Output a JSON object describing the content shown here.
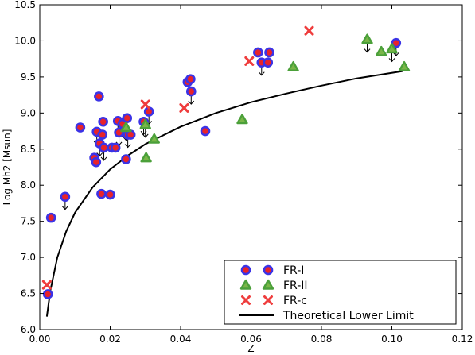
{
  "chart_data": {
    "type": "scatter",
    "xlabel": "Z",
    "ylabel": "Log Mh2 [Msun]",
    "xlim": [
      0.0,
      0.12
    ],
    "ylim": [
      6.0,
      10.5
    ],
    "xticks": [
      "0.00",
      "0.02",
      "0.04",
      "0.06",
      "0.08",
      "0.10",
      "0.12"
    ],
    "yticks": [
      "6.0",
      "6.5",
      "7.0",
      "7.5",
      "8.0",
      "8.5",
      "9.0",
      "9.5",
      "10.0",
      "10.5"
    ],
    "legend_position": "bottom-right",
    "colors": {
      "fr1_fill": "#e8232a",
      "fr1_edge": "#3b33e6",
      "fr2_fill": "#7ab648",
      "fr2_edge": "#4ba03a",
      "frc": "#ef3d3d",
      "curve": "#000000"
    },
    "series": [
      {
        "name": "FR-I",
        "marker": "circle",
        "points": [
          {
            "x": 0.0023,
            "y": 6.49,
            "upper_limit": false
          },
          {
            "x": 0.0032,
            "y": 7.55,
            "upper_limit": false
          },
          {
            "x": 0.0072,
            "y": 7.84,
            "upper_limit": true
          },
          {
            "x": 0.0115,
            "y": 8.8,
            "upper_limit": false
          },
          {
            "x": 0.0155,
            "y": 8.38,
            "upper_limit": false
          },
          {
            "x": 0.016,
            "y": 8.32,
            "upper_limit": false
          },
          {
            "x": 0.0162,
            "y": 8.74,
            "upper_limit": true
          },
          {
            "x": 0.0168,
            "y": 9.23,
            "upper_limit": false
          },
          {
            "x": 0.017,
            "y": 8.58,
            "upper_limit": true
          },
          {
            "x": 0.0175,
            "y": 7.88,
            "upper_limit": false
          },
          {
            "x": 0.0178,
            "y": 8.7,
            "upper_limit": false
          },
          {
            "x": 0.018,
            "y": 8.88,
            "upper_limit": false
          },
          {
            "x": 0.0182,
            "y": 8.52,
            "upper_limit": true
          },
          {
            "x": 0.02,
            "y": 7.87,
            "upper_limit": false
          },
          {
            "x": 0.0205,
            "y": 8.52,
            "upper_limit": false
          },
          {
            "x": 0.0215,
            "y": 8.52,
            "upper_limit": false
          },
          {
            "x": 0.0222,
            "y": 8.89,
            "upper_limit": true
          },
          {
            "x": 0.0225,
            "y": 8.73,
            "upper_limit": true
          },
          {
            "x": 0.0235,
            "y": 8.85,
            "upper_limit": true
          },
          {
            "x": 0.0245,
            "y": 8.36,
            "upper_limit": false
          },
          {
            "x": 0.0248,
            "y": 8.93,
            "upper_limit": true
          },
          {
            "x": 0.025,
            "y": 8.7,
            "upper_limit": true
          },
          {
            "x": 0.0258,
            "y": 8.7,
            "upper_limit": false
          },
          {
            "x": 0.0295,
            "y": 8.88,
            "upper_limit": true
          },
          {
            "x": 0.031,
            "y": 9.02,
            "upper_limit": true
          },
          {
            "x": 0.042,
            "y": 9.43,
            "upper_limit": false
          },
          {
            "x": 0.0428,
            "y": 9.47,
            "upper_limit": false
          },
          {
            "x": 0.043,
            "y": 9.3,
            "upper_limit": true
          },
          {
            "x": 0.047,
            "y": 8.75,
            "upper_limit": false
          },
          {
            "x": 0.062,
            "y": 9.84,
            "upper_limit": false
          },
          {
            "x": 0.063,
            "y": 9.7,
            "upper_limit": true
          },
          {
            "x": 0.0648,
            "y": 9.7,
            "upper_limit": false
          },
          {
            "x": 0.0652,
            "y": 9.84,
            "upper_limit": false
          },
          {
            "x": 0.1012,
            "y": 9.97,
            "upper_limit": true
          }
        ]
      },
      {
        "name": "FR-II",
        "marker": "triangle",
        "points": [
          {
            "x": 0.0245,
            "y": 8.8,
            "upper_limit": true
          },
          {
            "x": 0.03,
            "y": 8.84,
            "upper_limit": true
          },
          {
            "x": 0.0302,
            "y": 8.38,
            "upper_limit": false
          },
          {
            "x": 0.0325,
            "y": 8.64,
            "upper_limit": false
          },
          {
            "x": 0.0575,
            "y": 8.91,
            "upper_limit": false
          },
          {
            "x": 0.072,
            "y": 9.64,
            "upper_limit": false
          },
          {
            "x": 0.093,
            "y": 10.02,
            "upper_limit": true
          },
          {
            "x": 0.097,
            "y": 9.85,
            "upper_limit": false
          },
          {
            "x": 0.1,
            "y": 9.89,
            "upper_limit": true
          },
          {
            "x": 0.1035,
            "y": 9.64,
            "upper_limit": false
          }
        ]
      },
      {
        "name": "FR-c",
        "marker": "x",
        "points": [
          {
            "x": 0.002,
            "y": 6.62,
            "upper_limit": false
          },
          {
            "x": 0.03,
            "y": 9.12,
            "upper_limit": false
          },
          {
            "x": 0.041,
            "y": 9.07,
            "upper_limit": false
          },
          {
            "x": 0.0595,
            "y": 9.72,
            "upper_limit": false
          },
          {
            "x": 0.0765,
            "y": 10.14,
            "upper_limit": false
          }
        ]
      },
      {
        "name": "Theoretical Lower Limit",
        "marker": "line",
        "points": [
          {
            "x": 0.002,
            "y": 6.18
          },
          {
            "x": 0.003,
            "y": 6.54
          },
          {
            "x": 0.005,
            "y": 7.0
          },
          {
            "x": 0.0075,
            "y": 7.36
          },
          {
            "x": 0.01,
            "y": 7.62
          },
          {
            "x": 0.015,
            "y": 7.97
          },
          {
            "x": 0.02,
            "y": 8.22
          },
          {
            "x": 0.025,
            "y": 8.41
          },
          {
            "x": 0.03,
            "y": 8.57
          },
          {
            "x": 0.04,
            "y": 8.81
          },
          {
            "x": 0.05,
            "y": 9.0
          },
          {
            "x": 0.06,
            "y": 9.15
          },
          {
            "x": 0.07,
            "y": 9.27
          },
          {
            "x": 0.08,
            "y": 9.38
          },
          {
            "x": 0.09,
            "y": 9.48
          },
          {
            "x": 0.103,
            "y": 9.58
          }
        ]
      }
    ],
    "legend": [
      {
        "label": "FR-I",
        "marker": "circle"
      },
      {
        "label": "FR-II",
        "marker": "triangle"
      },
      {
        "label": "FR-c",
        "marker": "x"
      },
      {
        "label": "Theoretical Lower Limit",
        "marker": "line"
      }
    ]
  }
}
